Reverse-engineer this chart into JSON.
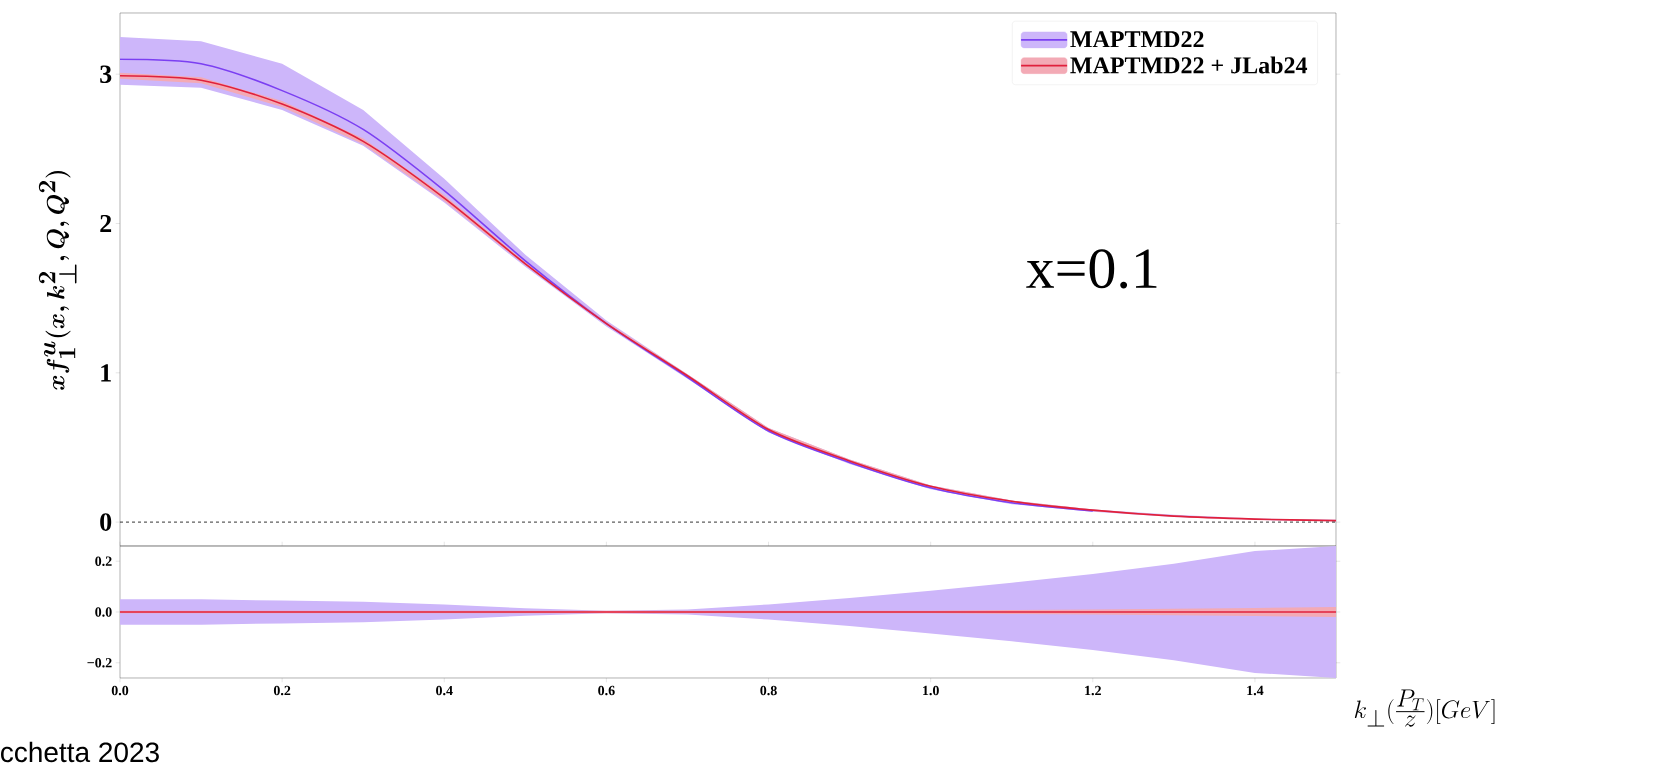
{
  "chart_data": [
    {
      "type": "line",
      "ylabel": "\\boldsymbol{x f_1^u(x, k_\\perp^2, Q, Q^2)}",
      "xlim": [
        0,
        1.5
      ],
      "ylim": [
        -0.16,
        3.41
      ],
      "yticks": [
        0,
        1,
        2,
        3
      ],
      "tick_labels": "y",
      "legend": "top right",
      "annotations": [
        "x=0.1"
      ],
      "ref_lines": [
        {
          "axis": "y",
          "value": 0,
          "line_style": "dashed",
          "color": "#000000"
        }
      ],
      "x": [
        0,
        0.1,
        0.2,
        0.3,
        0.4,
        0.5,
        0.6,
        0.7,
        0.8,
        0.9,
        1.0,
        1.1,
        1.2,
        1.3,
        1.4,
        1.5
      ],
      "series": [
        {
          "name": "MAPTMD22",
          "color": "#7b3ff2",
          "values": [
            3.1,
            3.07,
            2.89,
            2.63,
            2.22,
            1.75,
            1.33,
            0.97,
            0.61,
            0.4,
            0.23,
            0.13,
            0.075,
            null,
            null,
            null
          ],
          "lower": [
            2.93,
            2.91,
            2.76,
            2.52,
            2.14,
            1.71,
            1.31,
            0.96,
            0.6,
            0.39,
            0.22,
            0.12,
            0.07,
            0.035,
            0.015,
            0.005
          ],
          "upper": [
            3.25,
            3.22,
            3.07,
            2.76,
            2.3,
            1.79,
            1.35,
            0.99,
            0.63,
            0.42,
            0.245,
            0.145,
            0.085,
            0.05,
            0.025,
            0.015
          ]
        },
        {
          "name": "MAPTMD22 + JLab24",
          "color": "#e0203c",
          "values": [
            2.99,
            2.96,
            2.8,
            2.55,
            2.17,
            1.73,
            1.33,
            0.98,
            0.62,
            0.41,
            0.24,
            0.14,
            0.08,
            0.04,
            0.02,
            0.01
          ],
          "lower": [
            2.97,
            2.94,
            2.78,
            2.53,
            2.15,
            1.72,
            1.32,
            0.97,
            0.61,
            0.4,
            0.235,
            0.135,
            0.075,
            0.037,
            0.018,
            0.008
          ],
          "upper": [
            3.01,
            2.98,
            2.82,
            2.57,
            2.19,
            1.74,
            1.34,
            0.99,
            0.63,
            0.42,
            0.245,
            0.145,
            0.085,
            0.043,
            0.022,
            0.012
          ]
        }
      ]
    },
    {
      "type": "line",
      "xlabel": "k_\\perp(\\frac{P_T}{z})[GeV]",
      "xlim": [
        0,
        1.5
      ],
      "ylim": [
        -0.26,
        0.26
      ],
      "xticks": [
        {
          "value": 0,
          "label": "0.0"
        },
        {
          "value": 0.2,
          "label": "0.2"
        },
        {
          "value": 0.4,
          "label": "0.4"
        },
        {
          "value": 0.6,
          "label": "0.6"
        },
        {
          "value": 0.8,
          "label": "0.8"
        },
        {
          "value": 1.0,
          "label": "1.0"
        },
        {
          "value": 1.2,
          "label": "1.2"
        },
        {
          "value": 1.4,
          "label": "1.4"
        }
      ],
      "yticks": [
        {
          "value": -0.2,
          "label": "−0.2"
        },
        {
          "value": 0,
          "label": "0.0"
        },
        {
          "value": 0.2,
          "label": "0.2"
        }
      ],
      "annotations": [
        "cchetta 2023"
      ],
      "x": [
        0,
        0.1,
        0.2,
        0.3,
        0.4,
        0.5,
        0.6,
        0.7,
        0.8,
        0.9,
        1.0,
        1.1,
        1.2,
        1.3,
        1.4,
        1.5
      ],
      "series": [
        {
          "color": "#7b3ff2",
          "values": [
            null,
            null,
            null,
            null,
            null,
            null,
            null,
            null,
            null,
            null,
            null,
            null,
            null,
            null,
            null,
            null
          ],
          "lower": [
            -0.05,
            -0.05,
            -0.045,
            -0.04,
            -0.03,
            -0.015,
            -0.005,
            -0.01,
            -0.03,
            -0.055,
            -0.085,
            -0.115,
            -0.15,
            -0.19,
            -0.24,
            -0.26
          ],
          "upper": [
            0.05,
            0.05,
            0.045,
            0.04,
            0.03,
            0.015,
            0.005,
            0.01,
            0.03,
            0.055,
            0.084,
            0.115,
            0.15,
            0.19,
            0.24,
            0.26
          ]
        },
        {
          "color": "#e0203c",
          "values": [
            0,
            0,
            0,
            0,
            0,
            0,
            0,
            0,
            0,
            0,
            0,
            0,
            0,
            0,
            0,
            0
          ],
          "lower": [
            -0.005,
            -0.005,
            -0.005,
            -0.005,
            -0.005,
            -0.005,
            -0.005,
            -0.005,
            -0.005,
            -0.005,
            -0.005,
            -0.008,
            -0.01,
            -0.013,
            -0.016,
            -0.02
          ],
          "upper": [
            0.005,
            0.005,
            0.005,
            0.005,
            0.005,
            0.005,
            0.005,
            0.005,
            0.005,
            0.005,
            0.005,
            0.008,
            0.01,
            0.013,
            0.016,
            0.02
          ]
        }
      ]
    }
  ]
}
